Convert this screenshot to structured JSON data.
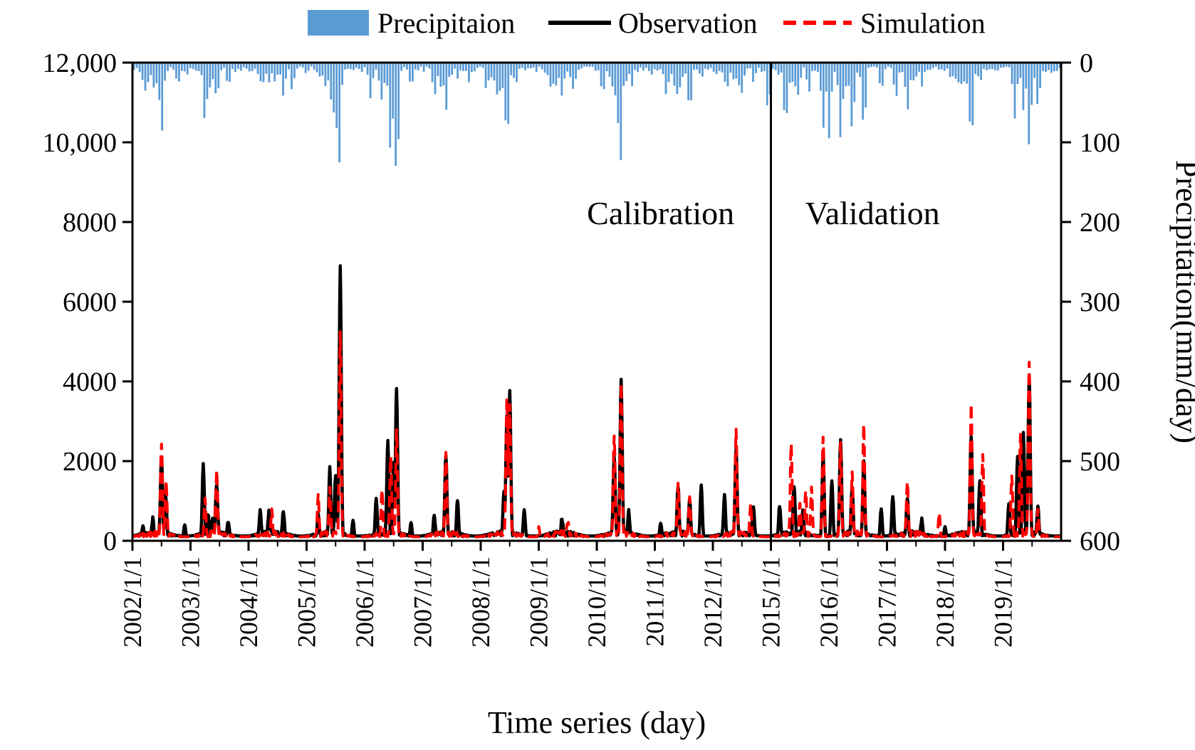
{
  "chart_data": {
    "type": "combo",
    "x_ticks": [
      "2002/1/1",
      "2003/1/1",
      "2004/1/1",
      "2005/1/1",
      "2006/1/1",
      "2007/1/1",
      "2008/1/1",
      "2009/1/1",
      "2010/1/1",
      "2011/1/1",
      "2012/1/1",
      "2015/1/1",
      "2016/1/1",
      "2017/1/1",
      "2018/1/1",
      "2019/1/1"
    ],
    "xlim": [
      0,
      16
    ],
    "xlabel": "Time series (day)",
    "y_left": {
      "ylim": [
        0,
        12000
      ],
      "ticks": [
        0,
        2000,
        4000,
        6000,
        8000,
        10000,
        12000
      ],
      "tick_labels": [
        "0",
        "2000",
        "4000",
        "6000",
        "8000",
        "10,000",
        "12,000"
      ],
      "label": ""
    },
    "y_right": {
      "ylim": [
        0,
        600
      ],
      "inverted": true,
      "ticks": [
        0,
        100,
        200,
        300,
        400,
        500,
        600
      ],
      "tick_labels": [
        "0",
        "100",
        "200",
        "300",
        "400",
        "500",
        "600"
      ],
      "label": "Precipitation(mm/day)"
    },
    "legend": [
      "Precipitaion",
      "Observation",
      "Simulation"
    ],
    "annotations": {
      "calibration": "Calibration",
      "validation": "Validation",
      "divider_x": 11.0
    },
    "colors": {
      "precip": "#5b9bd5",
      "observation": "#000000",
      "simulation": "#ff0000"
    },
    "precip_baseline": 5,
    "precip_peaks": [
      [
        0.22,
        35
      ],
      [
        0.5,
        88
      ],
      [
        0.78,
        28
      ],
      [
        0.95,
        15
      ],
      [
        1.25,
        75
      ],
      [
        1.45,
        45
      ],
      [
        1.65,
        30
      ],
      [
        2.3,
        12
      ],
      [
        2.45,
        20
      ],
      [
        2.6,
        42
      ],
      [
        2.75,
        35
      ],
      [
        3.0,
        15
      ],
      [
        3.3,
        22
      ],
      [
        3.45,
        70
      ],
      [
        3.55,
        135
      ],
      [
        3.72,
        8
      ],
      [
        4.1,
        45
      ],
      [
        4.3,
        48
      ],
      [
        4.45,
        115
      ],
      [
        4.55,
        145
      ],
      [
        4.8,
        30
      ],
      [
        5.2,
        42
      ],
      [
        5.4,
        60
      ],
      [
        5.6,
        20
      ],
      [
        5.8,
        25
      ],
      [
        6.1,
        35
      ],
      [
        6.3,
        48
      ],
      [
        6.45,
        95
      ],
      [
        6.6,
        28
      ],
      [
        6.95,
        12
      ],
      [
        7.2,
        30
      ],
      [
        7.4,
        42
      ],
      [
        7.6,
        35
      ],
      [
        8.1,
        40
      ],
      [
        8.3,
        45
      ],
      [
        8.4,
        130
      ],
      [
        8.6,
        30
      ],
      [
        8.95,
        15
      ],
      [
        9.2,
        42
      ],
      [
        9.4,
        45
      ],
      [
        9.6,
        60
      ],
      [
        9.8,
        20
      ],
      [
        10.05,
        15
      ],
      [
        10.25,
        30
      ],
      [
        10.5,
        38
      ],
      [
        10.7,
        25
      ],
      [
        10.95,
        60
      ],
      [
        11.25,
        78
      ],
      [
        11.45,
        45
      ],
      [
        11.65,
        38
      ],
      [
        11.9,
        82
      ],
      [
        12.0,
        95
      ],
      [
        12.2,
        95
      ],
      [
        12.4,
        85
      ],
      [
        12.6,
        82
      ],
      [
        12.9,
        35
      ],
      [
        13.15,
        45
      ],
      [
        13.35,
        60
      ],
      [
        13.6,
        30
      ],
      [
        14.1,
        20
      ],
      [
        14.3,
        32
      ],
      [
        14.45,
        97
      ],
      [
        14.6,
        25
      ],
      [
        14.9,
        10
      ],
      [
        15.2,
        70
      ],
      [
        15.35,
        60
      ],
      [
        15.45,
        105
      ],
      [
        15.6,
        55
      ],
      [
        15.85,
        15
      ]
    ],
    "observation_baseline": 120,
    "observation_peaks": [
      [
        0.18,
        350
      ],
      [
        0.35,
        480
      ],
      [
        0.5,
        2050
      ],
      [
        0.57,
        1100
      ],
      [
        0.9,
        400
      ],
      [
        1.22,
        1850
      ],
      [
        1.3,
        600
      ],
      [
        1.38,
        550
      ],
      [
        1.45,
        1400
      ],
      [
        1.65,
        450
      ],
      [
        2.2,
        700
      ],
      [
        2.35,
        650
      ],
      [
        2.6,
        700
      ],
      [
        3.2,
        600
      ],
      [
        3.4,
        1750
      ],
      [
        3.5,
        1600
      ],
      [
        3.58,
        6800
      ],
      [
        3.8,
        500
      ],
      [
        4.2,
        1000
      ],
      [
        4.4,
        2450
      ],
      [
        4.5,
        1900
      ],
      [
        4.55,
        3800
      ],
      [
        4.8,
        450
      ],
      [
        5.2,
        600
      ],
      [
        5.4,
        2100
      ],
      [
        5.6,
        1000
      ],
      [
        6.4,
        1200
      ],
      [
        6.45,
        3000
      ],
      [
        6.5,
        3700
      ],
      [
        6.75,
        750
      ],
      [
        7.4,
        500
      ],
      [
        8.3,
        2100
      ],
      [
        8.42,
        3950
      ],
      [
        8.55,
        700
      ],
      [
        9.1,
        400
      ],
      [
        9.4,
        1300
      ],
      [
        9.6,
        1000
      ],
      [
        9.8,
        1400
      ],
      [
        10.2,
        1100
      ],
      [
        10.4,
        2300
      ],
      [
        10.7,
        800
      ],
      [
        11.15,
        850
      ],
      [
        11.4,
        1300
      ],
      [
        11.55,
        700
      ],
      [
        11.9,
        2150
      ],
      [
        12.05,
        1500
      ],
      [
        12.2,
        2500
      ],
      [
        12.4,
        1300
      ],
      [
        12.6,
        2000
      ],
      [
        12.9,
        800
      ],
      [
        13.1,
        1100
      ],
      [
        13.35,
        1000
      ],
      [
        13.6,
        500
      ],
      [
        14.0,
        350
      ],
      [
        14.45,
        2600
      ],
      [
        14.6,
        1500
      ],
      [
        15.1,
        900
      ],
      [
        15.25,
        2100
      ],
      [
        15.35,
        2700
      ],
      [
        15.45,
        4100
      ],
      [
        15.6,
        800
      ]
    ],
    "simulation_baseline": 100,
    "simulation_peaks": [
      [
        0.5,
        2400
      ],
      [
        0.58,
        1400
      ],
      [
        1.25,
        1000
      ],
      [
        1.45,
        1700
      ],
      [
        2.4,
        650
      ],
      [
        3.2,
        1100
      ],
      [
        3.4,
        1200
      ],
      [
        3.58,
        5200
      ],
      [
        4.3,
        1200
      ],
      [
        4.45,
        2000
      ],
      [
        4.55,
        2700
      ],
      [
        5.4,
        2200
      ],
      [
        6.45,
        3500
      ],
      [
        6.5,
        3400
      ],
      [
        7.0,
        350
      ],
      [
        7.5,
        400
      ],
      [
        8.3,
        2600
      ],
      [
        8.42,
        3900
      ],
      [
        9.4,
        1400
      ],
      [
        9.6,
        1100
      ],
      [
        10.4,
        2700
      ],
      [
        10.65,
        900
      ],
      [
        11.35,
        2400
      ],
      [
        11.5,
        800
      ],
      [
        11.6,
        1200
      ],
      [
        11.7,
        1300
      ],
      [
        11.9,
        2600
      ],
      [
        12.2,
        2400
      ],
      [
        12.4,
        1600
      ],
      [
        12.6,
        2900
      ],
      [
        13.35,
        1400
      ],
      [
        13.9,
        700
      ],
      [
        14.45,
        3300
      ],
      [
        14.65,
        2100
      ],
      [
        15.15,
        1600
      ],
      [
        15.3,
        2600
      ],
      [
        15.45,
        4400
      ],
      [
        15.6,
        700
      ]
    ]
  }
}
